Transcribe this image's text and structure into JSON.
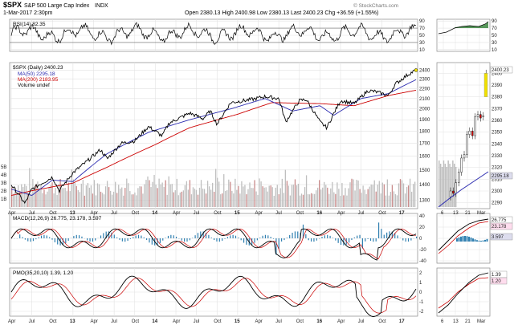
{
  "header": {
    "ticker": "$SPX",
    "name": "S&P 500 Large Cap Index",
    "exchange": "INDX",
    "datetime": "1-Mar-2017 2:30pm",
    "quote": "Open 2380.13  High 2400.98  Low 2380.13  Last 2400.23  Chg +36.59 (+1.55%)",
    "watermark": "© StockCharts.com"
  },
  "colors": {
    "price": "#000000",
    "ma50": "#2b2bb0",
    "ma200": "#cc0000",
    "volume": "#bfbfbf",
    "volume_up": "#c98a8a",
    "macd_signal": "#cc0000",
    "macd_hist": "#2f7fb0",
    "rsi_fill": "#2e7d32",
    "highlight": "#f0e000",
    "grid": "#e2e2e2"
  },
  "time_labels": [
    "Apr",
    "Jul",
    "Oct",
    "13",
    "Apr",
    "Jul",
    "Oct",
    "14",
    "Apr",
    "Jul",
    "Oct",
    "15",
    "Apr",
    "Jul",
    "Oct",
    "16",
    "Apr",
    "Jul",
    "Oct",
    "17"
  ],
  "inset_time_labels": [
    "6",
    "13",
    "21",
    "Mar"
  ],
  "rsi": {
    "label": "RSI(14) 82.35",
    "ticks": [
      "90",
      "70",
      "50",
      "30",
      "10"
    ],
    "inset_ticks": [
      "90",
      "70",
      "50",
      "30",
      "10"
    ]
  },
  "price": {
    "label": "$SPX (Daily) 2400.23",
    "ma50_label": "MA(50) 2295.18",
    "ma200_label": "MA(200) 2183.95",
    "volume_label": "Volume undef",
    "ticks": [
      "2400",
      "2300",
      "2200",
      "2100",
      "2000",
      "1900",
      "1800",
      "1700",
      "1600",
      "1500",
      "1400",
      "1300"
    ],
    "volume_ticks": [
      "5B",
      "4B",
      "3B",
      "2B",
      "1B"
    ],
    "inset_ticks": [
      "2400",
      "2390",
      "2380",
      "2370",
      "2360",
      "2350",
      "2340",
      "2330",
      "2320",
      "2310",
      "2300",
      "2290"
    ],
    "last_box": "2400.23",
    "ma50_box": "2295.18"
  },
  "macd": {
    "label": "MACD(12,26,9) 26.775, 23.178, 3.597",
    "ticks": [
      "40",
      "20",
      "0",
      "-20",
      "-40"
    ],
    "box_macd": "26.775",
    "box_signal": "23.178",
    "box_hist": "3.597"
  },
  "pmo": {
    "label": "PMO(35,20,10) 1.39, 1.20",
    "ticks": [
      "2",
      "1",
      "0",
      "-1",
      "-2"
    ],
    "box_pmo": "1.39",
    "box_signal": "1.20"
  },
  "chart_data": {
    "type": "line",
    "title": "S&P 500 Large Cap Index",
    "series": [
      {
        "name": "$SPX (Daily)",
        "dates": [
          "2012-04",
          "2012-06",
          "2012-07",
          "2012-10",
          "2012-11",
          "2013-01",
          "2013-03",
          "2013-05",
          "2013-06",
          "2013-08",
          "2013-10",
          "2013-12",
          "2014-02",
          "2014-03",
          "2014-06",
          "2014-08",
          "2014-09",
          "2014-10",
          "2014-12",
          "2015-03",
          "2015-05",
          "2015-07",
          "2015-08",
          "2015-10",
          "2015-11",
          "2016-01",
          "2016-02",
          "2016-04",
          "2016-06",
          "2016-08",
          "2016-09",
          "2016-11",
          "2016-12",
          "2017-02",
          "2017-03"
        ],
        "values": [
          1400,
          1280,
          1370,
          1450,
          1360,
          1480,
          1560,
          1650,
          1580,
          1700,
          1720,
          1840,
          1760,
          1870,
          1960,
          1910,
          1980,
          1860,
          2060,
          2090,
          2120,
          2100,
          1880,
          2080,
          2090,
          1880,
          1830,
          2080,
          2050,
          2180,
          2170,
          2130,
          2250,
          2360,
          2400
        ]
      },
      {
        "name": "MA(50)",
        "dates": [
          "2012-04",
          "2012-07",
          "2012-10",
          "2013-01",
          "2013-06",
          "2013-12",
          "2014-06",
          "2014-12",
          "2015-05",
          "2015-09",
          "2016-01",
          "2016-03",
          "2016-07",
          "2016-11",
          "2017-03"
        ],
        "values": [
          1370,
          1330,
          1430,
          1420,
          1620,
          1790,
          1900,
          2000,
          2100,
          1980,
          2030,
          1940,
          2100,
          2150,
          2295
        ]
      },
      {
        "name": "MA(200)",
        "dates": [
          "2012-04",
          "2012-07",
          "2013-01",
          "2013-06",
          "2014-01",
          "2014-06",
          "2015-01",
          "2015-06",
          "2016-01",
          "2016-06",
          "2016-11",
          "2017-03"
        ],
        "values": [
          1330,
          1360,
          1410,
          1520,
          1690,
          1830,
          1950,
          2060,
          2050,
          2030,
          2130,
          2184
        ]
      }
    ],
    "ylabel": "",
    "ylim": [
      1250,
      2450
    ],
    "yscale": "log",
    "grid": true,
    "legend": "top-left",
    "indicators": {
      "RSI(14)": 82.35,
      "MACD(12,26,9)": [
        26.775,
        23.178,
        3.597
      ],
      "PMO(35,20,10)": [
        1.39,
        1.2
      ]
    }
  }
}
